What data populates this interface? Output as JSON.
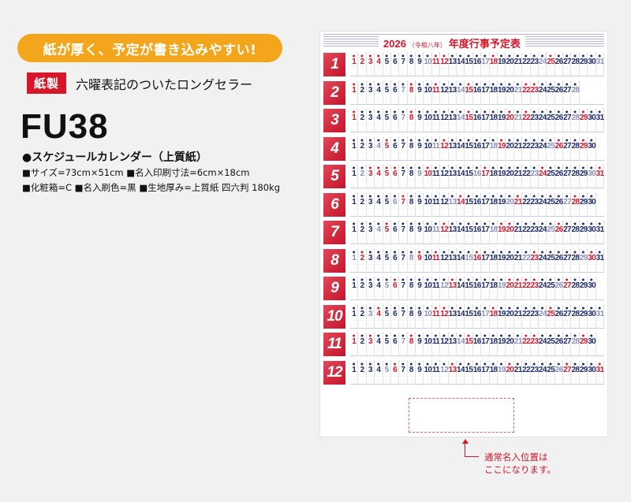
{
  "promo_banner": "紙が厚く、予定が書き込みやすい!",
  "material": {
    "tag": "紙製",
    "desc": "六曜表記のついたロングセラー"
  },
  "model": "FU38",
  "product_name": "●スケジュールカレンダー（上質紙）",
  "specs": [
    "■サイズ=73cm×51cm ■名入印刷寸法=6cm×18cm",
    "■化粧箱=C ■名入刷色=黒 ■生地厚み=上質紙 四六判 180kg"
  ],
  "calendar": {
    "year": "2026",
    "era": "（令和八年）",
    "title": "年度行事予定表",
    "months": [
      {
        "label": "1",
        "days": [
          1,
          2,
          3,
          4,
          5,
          6,
          7,
          8,
          9,
          10,
          11,
          12,
          13,
          14,
          15,
          16,
          17,
          18,
          19,
          20,
          21,
          22,
          23,
          24,
          25,
          26,
          27,
          28,
          29,
          30,
          31
        ]
      },
      {
        "label": "2",
        "days": [
          1,
          2,
          3,
          4,
          5,
          6,
          7,
          8,
          9,
          10,
          11,
          12,
          13,
          14,
          15,
          16,
          17,
          18,
          19,
          20,
          21,
          22,
          23,
          24,
          25,
          26,
          27,
          28
        ]
      },
      {
        "label": "3",
        "days": [
          1,
          2,
          3,
          4,
          5,
          6,
          7,
          8,
          9,
          10,
          11,
          12,
          13,
          14,
          15,
          16,
          17,
          18,
          19,
          20,
          21,
          22,
          23,
          24,
          25,
          26,
          27,
          28,
          29,
          30,
          31
        ]
      },
      {
        "label": "4",
        "days": [
          1,
          2,
          3,
          4,
          5,
          6,
          7,
          8,
          9,
          10,
          11,
          12,
          13,
          14,
          15,
          16,
          17,
          18,
          19,
          20,
          21,
          22,
          23,
          24,
          25,
          26,
          27,
          28,
          29,
          30
        ]
      },
      {
        "label": "5",
        "days": [
          1,
          2,
          3,
          4,
          5,
          6,
          7,
          8,
          9,
          10,
          11,
          12,
          13,
          14,
          15,
          16,
          17,
          18,
          19,
          20,
          21,
          22,
          23,
          24,
          25,
          26,
          27,
          28,
          29,
          30,
          31
        ]
      },
      {
        "label": "6",
        "days": [
          1,
          2,
          3,
          4,
          5,
          6,
          7,
          8,
          9,
          10,
          11,
          12,
          13,
          14,
          15,
          16,
          17,
          18,
          19,
          20,
          21,
          22,
          23,
          24,
          25,
          26,
          27,
          28,
          29,
          30
        ]
      },
      {
        "label": "7",
        "days": [
          1,
          2,
          3,
          4,
          5,
          6,
          7,
          8,
          9,
          10,
          11,
          12,
          13,
          14,
          15,
          16,
          17,
          18,
          19,
          20,
          21,
          22,
          23,
          24,
          25,
          26,
          27,
          28,
          29,
          30,
          31
        ]
      },
      {
        "label": "8",
        "days": [
          1,
          2,
          3,
          4,
          5,
          6,
          7,
          8,
          9,
          10,
          11,
          12,
          13,
          14,
          15,
          16,
          17,
          18,
          19,
          20,
          21,
          22,
          23,
          24,
          25,
          26,
          27,
          28,
          29,
          30,
          31
        ]
      },
      {
        "label": "9",
        "days": [
          1,
          2,
          3,
          4,
          5,
          6,
          7,
          8,
          9,
          10,
          11,
          12,
          13,
          14,
          15,
          16,
          17,
          18,
          19,
          20,
          21,
          22,
          23,
          24,
          25,
          26,
          27,
          28,
          29,
          30
        ]
      },
      {
        "label": "10",
        "days": [
          1,
          2,
          3,
          4,
          5,
          6,
          7,
          8,
          9,
          10,
          11,
          12,
          13,
          14,
          15,
          16,
          17,
          18,
          19,
          20,
          21,
          22,
          23,
          24,
          25,
          26,
          27,
          28,
          29,
          30,
          31
        ]
      },
      {
        "label": "11",
        "days": [
          1,
          2,
          3,
          4,
          5,
          6,
          7,
          8,
          9,
          10,
          11,
          12,
          13,
          14,
          15,
          16,
          17,
          18,
          19,
          20,
          21,
          22,
          23,
          24,
          25,
          26,
          27,
          28,
          29,
          30
        ]
      },
      {
        "label": "12",
        "days": [
          1,
          2,
          3,
          4,
          5,
          6,
          7,
          8,
          9,
          10,
          11,
          12,
          13,
          14,
          15,
          16,
          17,
          18,
          19,
          20,
          21,
          22,
          23,
          24,
          25,
          26,
          27,
          28,
          29,
          30,
          31
        ]
      }
    ],
    "holidays": {
      "1": [
        1,
        2,
        3,
        12
      ],
      "2": [
        11,
        23
      ],
      "3": [
        20
      ],
      "4": [
        29
      ],
      "5": [
        3,
        4,
        5,
        6
      ],
      "7": [
        20
      ],
      "8": [
        11
      ],
      "9": [
        21,
        22,
        23
      ],
      "10": [
        12
      ],
      "11": [
        3,
        23
      ],
      "12": [
        31
      ]
    }
  },
  "colors": {
    "weekday": "#1d2a6e",
    "saturday": "#8a8dbd",
    "sunday": "#d7162a",
    "accent": "#d7162a",
    "banner": "#f3a51b"
  },
  "note_lines": [
    "通常名入位置は",
    "ここになります。"
  ]
}
